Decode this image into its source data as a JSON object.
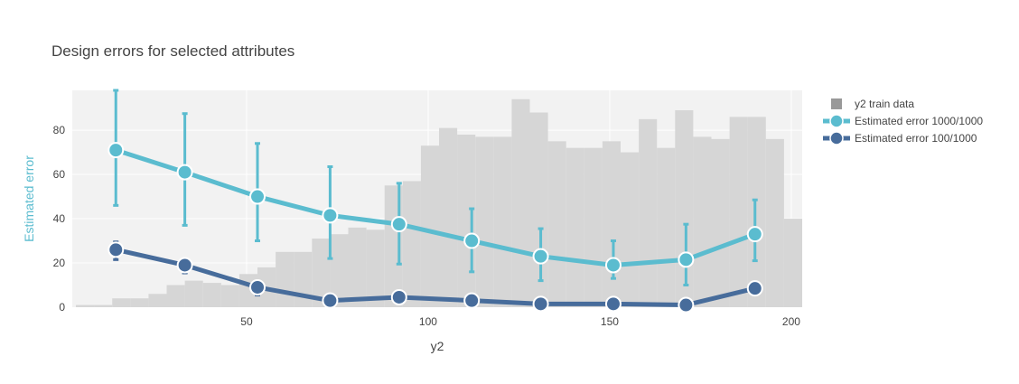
{
  "chart_data": {
    "type": "line",
    "title": "Design errors for selected attributes",
    "xlabel": "y2",
    "ylabel": "Estimated error",
    "xlim": [
      2,
      203
    ],
    "ylim": [
      0,
      98
    ],
    "x_ticks": [
      50,
      100,
      150,
      200
    ],
    "y_ticks": [
      0,
      20,
      40,
      60,
      80
    ],
    "grid": true,
    "legend_position": "top-right",
    "histogram": {
      "name": "y2 train data",
      "color": "#d6d6d6",
      "legend_color": "#999999",
      "bin_start": 3,
      "bin_width": 5,
      "counts": [
        1,
        1,
        4,
        4,
        6,
        10,
        12,
        11,
        10,
        15,
        18,
        25,
        25,
        31,
        33,
        36,
        35,
        55,
        57,
        73,
        81,
        78,
        77,
        77,
        94,
        88,
        75,
        72,
        72,
        75,
        70,
        85,
        72,
        89,
        77,
        76,
        86,
        86,
        76,
        40
      ]
    },
    "series": [
      {
        "name": "Estimated error 1000/1000",
        "color": "#5bbccf",
        "x": [
          14,
          33,
          53,
          73,
          92,
          112,
          131,
          151,
          171,
          190
        ],
        "y": [
          71,
          61,
          50,
          41.5,
          37.5,
          30,
          23,
          19,
          21.5,
          33
        ],
        "error_low": [
          46,
          37,
          30,
          22,
          19.5,
          16,
          12,
          13,
          10,
          21
        ],
        "error_high": [
          98,
          87.5,
          74,
          63.5,
          56,
          44.5,
          35.5,
          30,
          37.5,
          48.5
        ]
      },
      {
        "name": "Estimated error 100/1000",
        "color": "#476c9b",
        "x": [
          14,
          33,
          53,
          73,
          92,
          112,
          131,
          151,
          171,
          190
        ],
        "y": [
          26,
          19,
          9,
          3,
          4.5,
          3,
          1.5,
          1.5,
          1,
          8.5
        ],
        "error_low": [
          21.5,
          15.5,
          5.5,
          2.5,
          3.5,
          2.5,
          1,
          1,
          0.5,
          7.5
        ],
        "error_high": [
          29.5,
          21.5,
          11.5,
          4,
          5.5,
          4,
          2,
          2,
          1.5,
          9.5
        ]
      }
    ]
  }
}
